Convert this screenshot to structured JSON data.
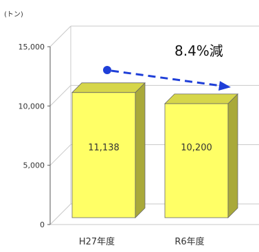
{
  "chart_data": {
    "type": "bar",
    "y_unit": "(トン)",
    "categories": [
      "H27年度",
      "R6年度"
    ],
    "values": [
      11138,
      10200
    ],
    "value_labels": [
      "11,138",
      "10,200"
    ],
    "y_ticks": [
      0,
      5000,
      10000,
      15000
    ],
    "y_tick_labels": [
      "0",
      "5,000",
      "10,000",
      "15,000"
    ],
    "ylim": [
      0,
      15000
    ],
    "annotation": "8.4%減",
    "colors": {
      "bar_front": "#ffff66",
      "bar_side": "#a9a93a",
      "bar_top": "#d6d64a",
      "arrow": "#1f3fd8",
      "grid": "#c8c8c8"
    }
  }
}
